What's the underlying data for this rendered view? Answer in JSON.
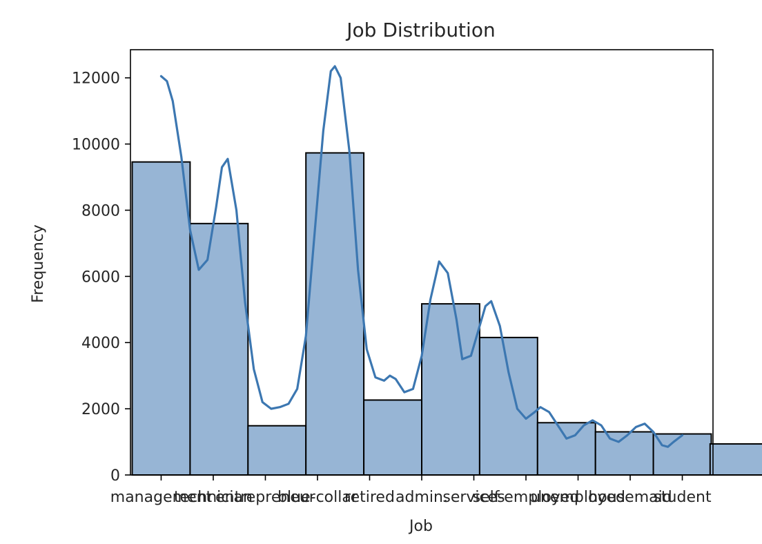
{
  "chart_data": {
    "type": "bar",
    "title": "Job Distribution",
    "xlabel": "Job",
    "ylabel": "Frequency",
    "categories": [
      "management",
      "technician",
      "entrepreneur",
      "blue-collar",
      "retired",
      "admin.",
      "services",
      "self-employed",
      "unemployed",
      "housemaid",
      "student"
    ],
    "values": [
      9458,
      7597,
      1487,
      9732,
      2264,
      5171,
      4154,
      1579,
      1303,
      1240,
      938
    ],
    "kde": [
      [
        0.0,
        12050
      ],
      [
        0.1,
        11900
      ],
      [
        0.2,
        11300
      ],
      [
        0.35,
        9600
      ],
      [
        0.5,
        7400
      ],
      [
        0.65,
        6200
      ],
      [
        0.8,
        6500
      ],
      [
        0.95,
        8100
      ],
      [
        1.05,
        9300
      ],
      [
        1.15,
        9550
      ],
      [
        1.3,
        8000
      ],
      [
        1.45,
        5200
      ],
      [
        1.6,
        3200
      ],
      [
        1.75,
        2200
      ],
      [
        1.9,
        2000
      ],
      [
        2.05,
        2050
      ],
      [
        2.2,
        2150
      ],
      [
        2.35,
        2600
      ],
      [
        2.5,
        4200
      ],
      [
        2.65,
        7300
      ],
      [
        2.8,
        10400
      ],
      [
        2.93,
        12200
      ],
      [
        3.0,
        12350
      ],
      [
        3.1,
        12000
      ],
      [
        3.25,
        9800
      ],
      [
        3.4,
        6200
      ],
      [
        3.55,
        3800
      ],
      [
        3.7,
        2950
      ],
      [
        3.85,
        2850
      ],
      [
        3.95,
        3000
      ],
      [
        4.05,
        2900
      ],
      [
        4.2,
        2500
      ],
      [
        4.35,
        2600
      ],
      [
        4.5,
        3600
      ],
      [
        4.65,
        5300
      ],
      [
        4.8,
        6450
      ],
      [
        4.95,
        6100
      ],
      [
        5.1,
        4700
      ],
      [
        5.2,
        3500
      ],
      [
        5.35,
        3600
      ],
      [
        5.5,
        4500
      ],
      [
        5.6,
        5100
      ],
      [
        5.7,
        5250
      ],
      [
        5.85,
        4500
      ],
      [
        6.0,
        3100
      ],
      [
        6.15,
        2000
      ],
      [
        6.3,
        1700
      ],
      [
        6.45,
        1900
      ],
      [
        6.55,
        2050
      ],
      [
        6.7,
        1900
      ],
      [
        6.85,
        1500
      ],
      [
        7.0,
        1100
      ],
      [
        7.15,
        1200
      ],
      [
        7.3,
        1500
      ],
      [
        7.45,
        1650
      ],
      [
        7.6,
        1500
      ],
      [
        7.75,
        1100
      ],
      [
        7.9,
        1000
      ],
      [
        8.05,
        1200
      ],
      [
        8.2,
        1450
      ],
      [
        8.35,
        1550
      ],
      [
        8.5,
        1300
      ],
      [
        8.65,
        900
      ],
      [
        8.75,
        850
      ],
      [
        8.85,
        1000
      ],
      [
        9.0,
        1200
      ]
    ],
    "ylim": [
      0,
      12850
    ],
    "xlim": [
      -0.53,
      9.53
    ],
    "yticks": [
      0,
      2000,
      4000,
      6000,
      8000,
      10000,
      12000
    ],
    "grid": false,
    "colors": {
      "bar_fill": "#97b5d5",
      "bar_edge": "#000000",
      "kde_line": "#3c77b1",
      "axis": "#000000"
    }
  }
}
